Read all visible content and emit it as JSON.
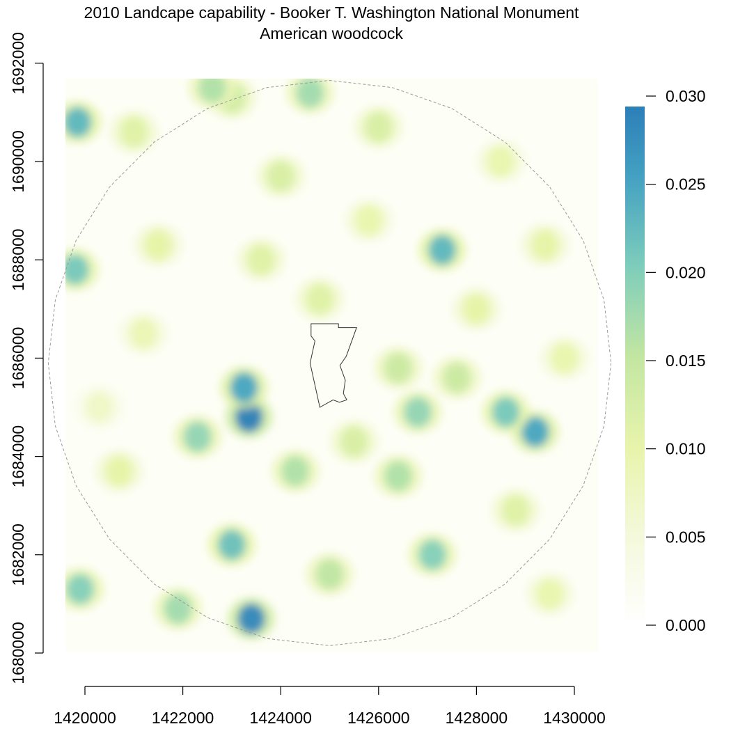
{
  "chart_data": {
    "type": "heatmap",
    "title": "2010 Landcape capability - Booker T. Washington National Monument",
    "subtitle": "American woodcock",
    "x_ticks": [
      1420000,
      1422000,
      1424000,
      1426000,
      1428000,
      1430000
    ],
    "y_ticks": [
      1680000,
      1682000,
      1684000,
      1686000,
      1688000,
      1690000,
      1692000
    ],
    "x_tick_labels": [
      "1420000",
      "1422000",
      "1424000",
      "1426000",
      "1428000",
      "1430000"
    ],
    "y_tick_labels": [
      "1680000",
      "1682000",
      "1684000",
      "1686000",
      "1688000",
      "1690000",
      "1692000"
    ],
    "xlim": [
      1419600,
      1430500
    ],
    "ylim": [
      1680000,
      1691700
    ],
    "colorbar": {
      "min": 0.0,
      "max": 0.029,
      "ticks": [
        0.0,
        0.005,
        0.01,
        0.015,
        0.02,
        0.025,
        0.03
      ],
      "tick_labels": [
        "0.000",
        "0.005",
        "0.010",
        "0.015",
        "0.020",
        "0.025",
        "0.030"
      ],
      "colors": [
        "#ffffff",
        "#f1f8d0",
        "#e7f4a6",
        "#c5e8a0",
        "#7fcdbb",
        "#41a3c2",
        "#2c7fb8"
      ]
    },
    "hotspots": [
      {
        "x": 1423350,
        "y": 1684800,
        "value": 0.029
      },
      {
        "x": 1423250,
        "y": 1685400,
        "value": 0.024
      },
      {
        "x": 1423400,
        "y": 1680700,
        "value": 0.028
      },
      {
        "x": 1429200,
        "y": 1684500,
        "value": 0.024
      },
      {
        "x": 1428600,
        "y": 1684900,
        "value": 0.02
      },
      {
        "x": 1426800,
        "y": 1684900,
        "value": 0.018
      },
      {
        "x": 1426400,
        "y": 1683600,
        "value": 0.016
      },
      {
        "x": 1427100,
        "y": 1682000,
        "value": 0.019
      },
      {
        "x": 1423000,
        "y": 1682200,
        "value": 0.021
      },
      {
        "x": 1422300,
        "y": 1684400,
        "value": 0.018
      },
      {
        "x": 1421900,
        "y": 1680900,
        "value": 0.017
      },
      {
        "x": 1419900,
        "y": 1681300,
        "value": 0.019
      },
      {
        "x": 1419850,
        "y": 1690800,
        "value": 0.022
      },
      {
        "x": 1419800,
        "y": 1687800,
        "value": 0.02
      },
      {
        "x": 1427300,
        "y": 1688200,
        "value": 0.022
      },
      {
        "x": 1425000,
        "y": 1681600,
        "value": 0.015
      },
      {
        "x": 1424300,
        "y": 1683700,
        "value": 0.016
      },
      {
        "x": 1427600,
        "y": 1685600,
        "value": 0.014
      },
      {
        "x": 1421500,
        "y": 1688300,
        "value": 0.01
      },
      {
        "x": 1423600,
        "y": 1688000,
        "value": 0.011
      },
      {
        "x": 1424800,
        "y": 1687200,
        "value": 0.011
      },
      {
        "x": 1425800,
        "y": 1688800,
        "value": 0.009
      },
      {
        "x": 1428000,
        "y": 1687000,
        "value": 0.01
      },
      {
        "x": 1429400,
        "y": 1688300,
        "value": 0.01
      },
      {
        "x": 1426000,
        "y": 1690700,
        "value": 0.012
      },
      {
        "x": 1421000,
        "y": 1690600,
        "value": 0.011
      },
      {
        "x": 1423000,
        "y": 1691300,
        "value": 0.013
      },
      {
        "x": 1424600,
        "y": 1691400,
        "value": 0.017
      },
      {
        "x": 1422600,
        "y": 1691500,
        "value": 0.016
      },
      {
        "x": 1428500,
        "y": 1690000,
        "value": 0.009
      },
      {
        "x": 1429800,
        "y": 1686000,
        "value": 0.009
      },
      {
        "x": 1421200,
        "y": 1686500,
        "value": 0.008
      },
      {
        "x": 1420700,
        "y": 1683700,
        "value": 0.01
      },
      {
        "x": 1428800,
        "y": 1682900,
        "value": 0.011
      },
      {
        "x": 1429500,
        "y": 1681200,
        "value": 0.009
      },
      {
        "x": 1426400,
        "y": 1685800,
        "value": 0.014
      },
      {
        "x": 1425500,
        "y": 1684300,
        "value": 0.012
      },
      {
        "x": 1420300,
        "y": 1685000,
        "value": 0.006
      },
      {
        "x": 1424000,
        "y": 1689700,
        "value": 0.012
      }
    ],
    "study_area_circle": {
      "center_x": 1425000,
      "center_y": 1685900,
      "radius": 5750
    },
    "monument_boundary": [
      [
        1424620,
        1686700
      ],
      [
        1425180,
        1686700
      ],
      [
        1425180,
        1686620
      ],
      [
        1425550,
        1686620
      ],
      [
        1425340,
        1686040
      ],
      [
        1425210,
        1685850
      ],
      [
        1425320,
        1685550
      ],
      [
        1425280,
        1685280
      ],
      [
        1425350,
        1685150
      ],
      [
        1425200,
        1685100
      ],
      [
        1425070,
        1685150
      ],
      [
        1424800,
        1685000
      ],
      [
        1424600,
        1685900
      ],
      [
        1424700,
        1686350
      ],
      [
        1424620,
        1686450
      ]
    ]
  }
}
